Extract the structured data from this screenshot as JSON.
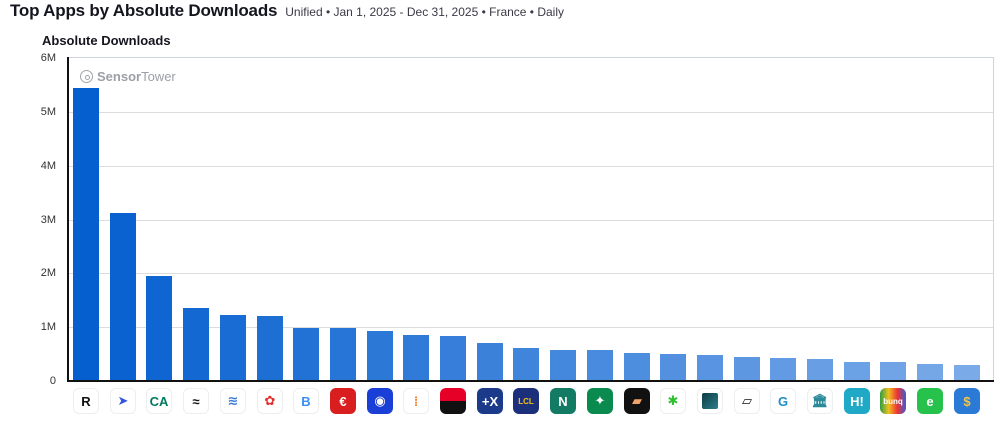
{
  "header": {
    "title": "Top Apps by Absolute Downloads",
    "subtitle": "Unified • Jan 1, 2025 - Dec 31, 2025 • France • Daily"
  },
  "chart_title": "Absolute Downloads",
  "watermark": {
    "bold": "Sensor",
    "light": "Tower"
  },
  "y_ticks": [
    "6M",
    "5M",
    "4M",
    "3M",
    "2M",
    "1M",
    "0"
  ],
  "chart_data": {
    "type": "bar",
    "title": "Absolute Downloads",
    "xlabel": "",
    "ylabel": "Absolute Downloads",
    "ylim": [
      0,
      6000000
    ],
    "grid": true,
    "legend": "none",
    "categories": [
      "Revolut",
      "Lydia/Sumeria",
      "Crédit Agricole",
      "Qonto-like (black)",
      "Banque Populaire",
      "Santander-like (red)",
      "Boursorama (B)",
      "Caisse d'Épargne",
      "Blue rounded app",
      "Orange dots app",
      "Société Générale",
      "Hello bank +X",
      "LCL",
      "Nickel (N)",
      "BNP Paribas",
      "Trade Republic-like",
      "Green figure app",
      "Dark teal square",
      "Black card app",
      "Red check app",
      "Bank building app",
      "Hello bank H!",
      "bunq",
      "Green e app",
      "Gold crypto app"
    ],
    "values": [
      5450000,
      3130000,
      1950000,
      1350000,
      1220000,
      1200000,
      980000,
      980000,
      930000,
      850000,
      830000,
      700000,
      620000,
      570000,
      570000,
      520000,
      500000,
      480000,
      450000,
      420000,
      400000,
      350000,
      350000,
      320000,
      300000
    ]
  },
  "icons": [
    {
      "name": "revolut-icon",
      "glyph": "R",
      "bg": "#ffffff",
      "fg": "#111111"
    },
    {
      "name": "arrow-app-icon",
      "glyph": "➤",
      "bg": "#ffffff",
      "fg": "#3355dd"
    },
    {
      "name": "credit-agricole-icon",
      "glyph": "CA",
      "bg": "#ffffff",
      "fg": "#007a5e"
    },
    {
      "name": "black-mark-app-icon",
      "glyph": "≈",
      "bg": "#ffffff",
      "fg": "#111111"
    },
    {
      "name": "banque-populaire-icon",
      "glyph": "≋",
      "bg": "#ffffff",
      "fg": "#3d7bd6"
    },
    {
      "name": "red-trefoil-app-icon",
      "glyph": "✿",
      "bg": "#ffffff",
      "fg": "#e32b2b"
    },
    {
      "name": "boursorama-icon",
      "glyph": "B",
      "bg": "#ffffff",
      "fg": "#3a8ef5"
    },
    {
      "name": "caisse-epargne-icon",
      "glyph": "€",
      "bg": "#d81e1e",
      "fg": "#ffffff"
    },
    {
      "name": "blue-rounded-app-icon",
      "glyph": "◉",
      "bg": "#1a3fd6",
      "fg": "#ffffff"
    },
    {
      "name": "orange-dots-app-icon",
      "glyph": "⁞",
      "bg": "#ffffff",
      "fg": "#f47a20"
    },
    {
      "name": "societe-generale-icon",
      "glyph": "",
      "bg": "linear-gradient(#e60028 50%, #111 50%)",
      "fg": "#ffffff"
    },
    {
      "name": "hello-plus-x-icon",
      "glyph": "+X",
      "bg": "#1b3a8a",
      "fg": "#ffffff"
    },
    {
      "name": "lcl-icon",
      "glyph": "LCL",
      "bg": "#1c2f7a",
      "fg": "#f2c318"
    },
    {
      "name": "nickel-icon",
      "glyph": "N",
      "bg": "#137a63",
      "fg": "#ffffff"
    },
    {
      "name": "bnp-paribas-icon",
      "glyph": "✦",
      "bg": "#0a8a4e",
      "fg": "#ffffff"
    },
    {
      "name": "black-orange-app-icon",
      "glyph": "▰",
      "bg": "#111111",
      "fg": "#f0a36a"
    },
    {
      "name": "green-figure-app-icon",
      "glyph": "✱",
      "bg": "#ffffff",
      "fg": "#2fbf2f"
    },
    {
      "name": "dark-teal-square-icon",
      "glyph": "",
      "bg": "#ffffff",
      "fg": "#14525c"
    },
    {
      "name": "black-card-app-icon",
      "glyph": "▱",
      "bg": "#ffffff",
      "fg": "#111111"
    },
    {
      "name": "red-check-app-icon",
      "glyph": "G",
      "bg": "#ffffff",
      "fg": "#1a8ec9"
    },
    {
      "name": "bank-building-app-icon",
      "glyph": "🏛",
      "bg": "#ffffff",
      "fg": "#2a8a9a"
    },
    {
      "name": "hello-bank-icon",
      "glyph": "H!",
      "bg": "#1fa9c6",
      "fg": "#ffffff"
    },
    {
      "name": "bunq-icon",
      "glyph": "bunq",
      "bg": "linear-gradient(90deg,#2e9e3e,#f0c020,#e33,#3b5bd6)",
      "fg": "#ffffff"
    },
    {
      "name": "green-e-app-icon",
      "glyph": "e",
      "bg": "#27c24c",
      "fg": "#ffffff"
    },
    {
      "name": "gold-crypto-app-icon",
      "glyph": "$",
      "bg": "#2b7ad6",
      "fg": "#f5c542"
    }
  ]
}
